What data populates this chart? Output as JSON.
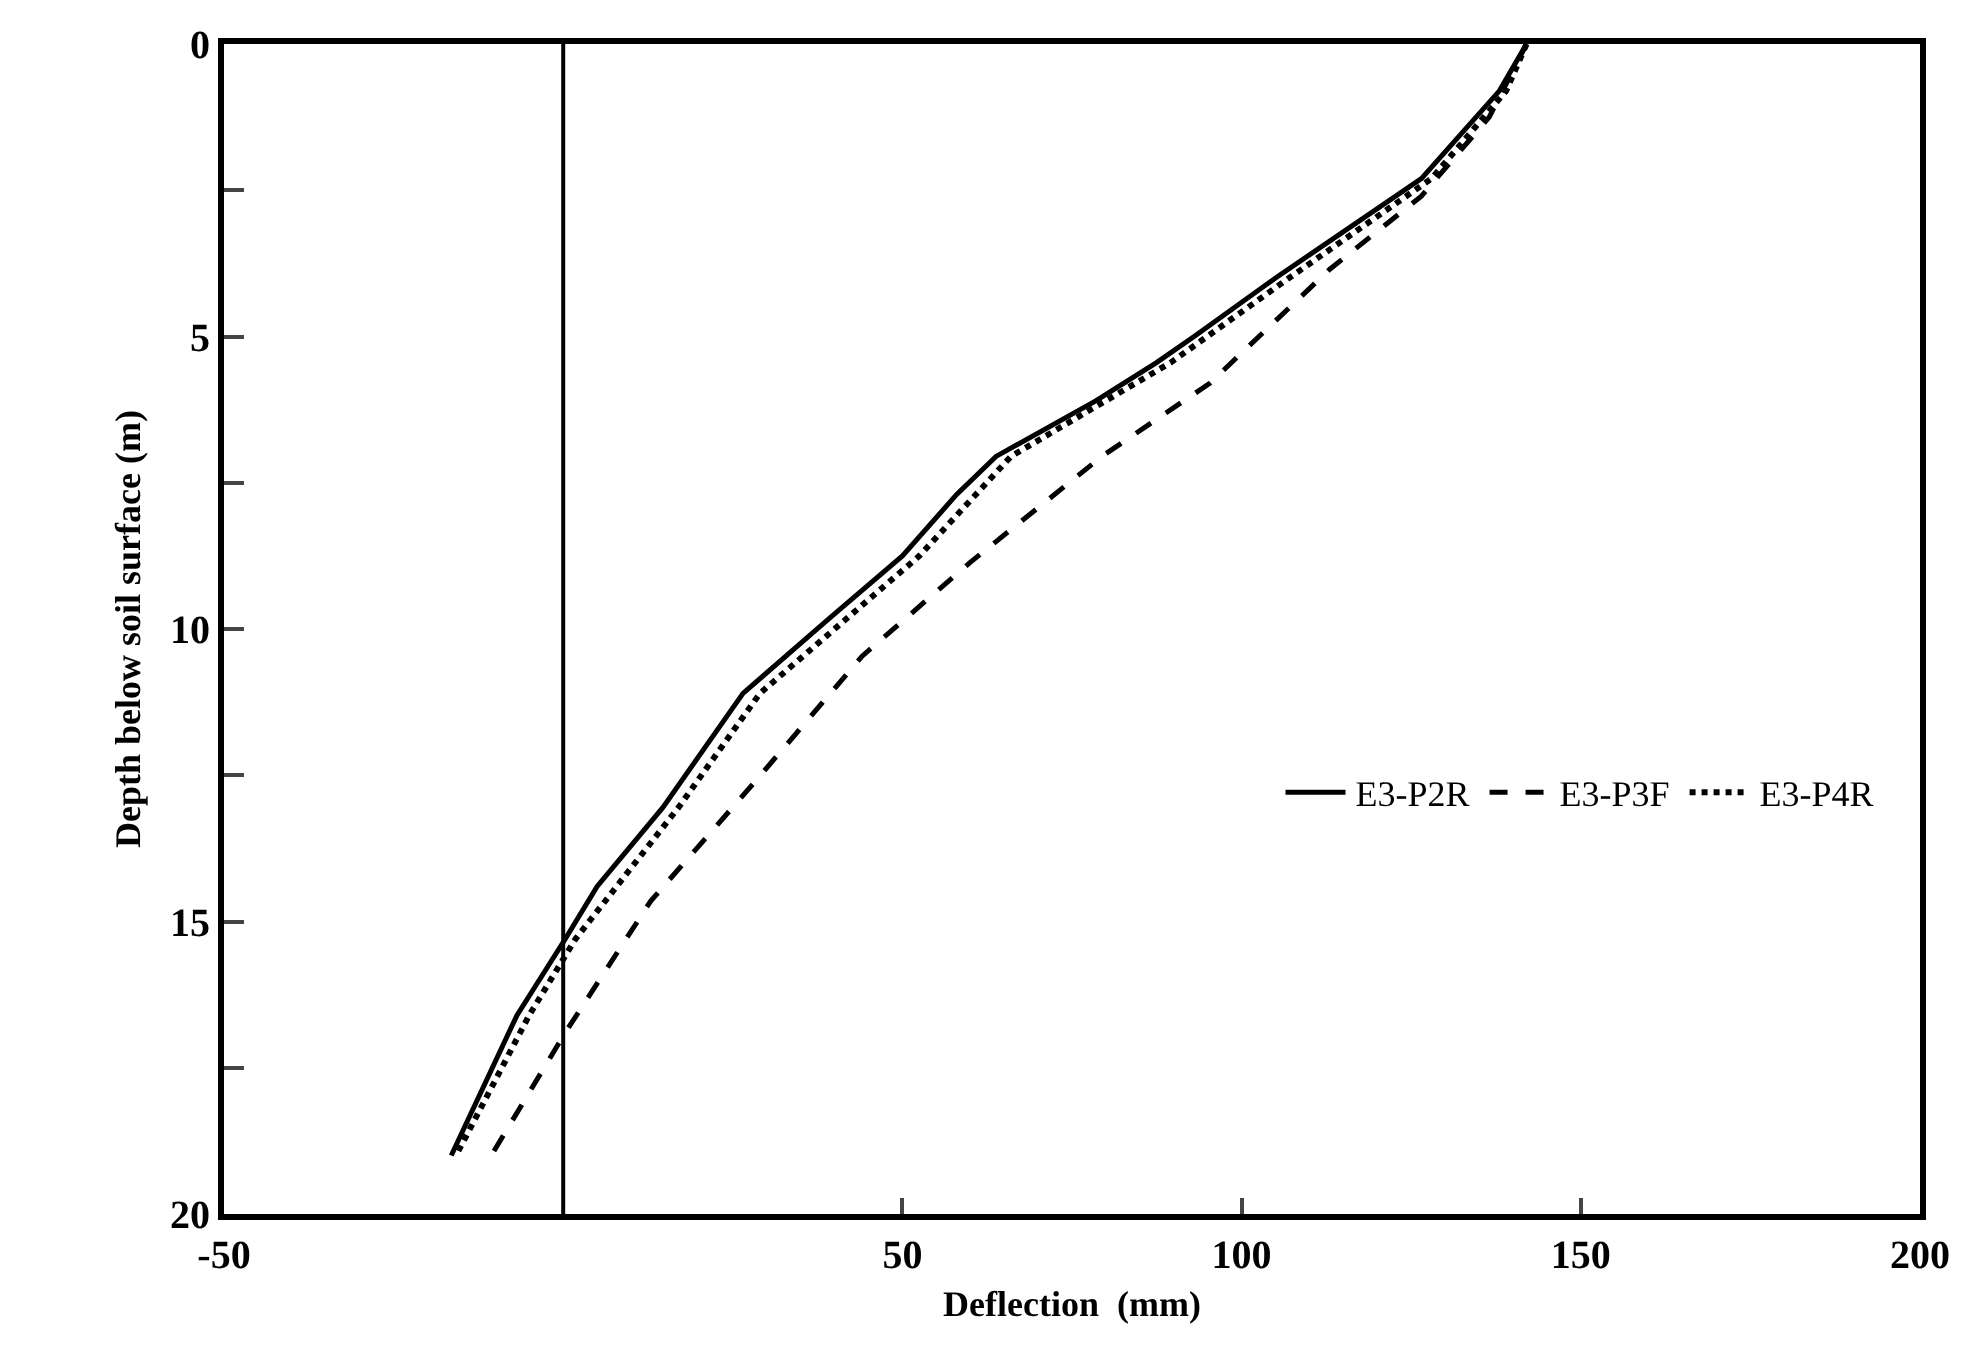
{
  "chart_data": {
    "type": "line",
    "xlabel": "Deflection  (mm)",
    "ylabel": "Depth below soil surface (m)",
    "xlim": [
      -50,
      200
    ],
    "xticks": [
      -50,
      50,
      100,
      150,
      200
    ],
    "ylim": [
      20,
      0
    ],
    "yticks": [
      0,
      {
        "value": 2.5,
        "label": null
      },
      5,
      {
        "value": 7.5,
        "label": null
      },
      10,
      {
        "value": 12.5,
        "label": null
      },
      15,
      {
        "value": 17.5,
        "label": null
      },
      20
    ],
    "grid": false,
    "legend": "right",
    "marker": "none",
    "ref_lines": [
      {
        "axis": "x",
        "value": 0,
        "color": "#000000",
        "line_style": "solid"
      }
    ],
    "series": [
      {
        "name": "E3-P2R",
        "color": "#000000",
        "line_style": "solid",
        "x": [
          142,
          138,
          126.5,
          105,
          93,
          87.4,
          78.5,
          63.8,
          58,
          50,
          39.4,
          26.5,
          14.7,
          5,
          0.3,
          -6.8,
          -16.5
        ],
        "values": [
          0,
          0.8,
          2.3,
          4.0,
          5.0,
          5.45,
          6.1,
          7.05,
          7.7,
          8.75,
          9.8,
          11.1,
          13.05,
          14.4,
          15.3,
          16.6,
          19.0
        ]
      },
      {
        "name": "E3-P3F",
        "color": "#000000",
        "line_style": "dashed",
        "x": [
          142,
          136.5,
          126.5,
          113,
          95.3,
          79.4,
          60,
          44.1,
          27.6,
          12.9,
          0.3,
          -10.6
        ],
        "values": [
          0,
          1.25,
          2.6,
          3.85,
          5.8,
          7.05,
          8.86,
          10.46,
          12.7,
          14.65,
          16.9,
          19.0
        ]
      },
      {
        "name": "E3-P4R",
        "color": "#000000",
        "line_style": "dotted",
        "x": [
          142,
          139,
          128,
          107,
          89.5,
          66,
          52.5,
          29,
          17,
          1.8,
          -5,
          -15.8
        ],
        "values": [
          0,
          0.8,
          2.3,
          4.0,
          5.45,
          7.05,
          8.75,
          11.1,
          13.05,
          15.3,
          16.6,
          19.0
        ]
      }
    ]
  }
}
